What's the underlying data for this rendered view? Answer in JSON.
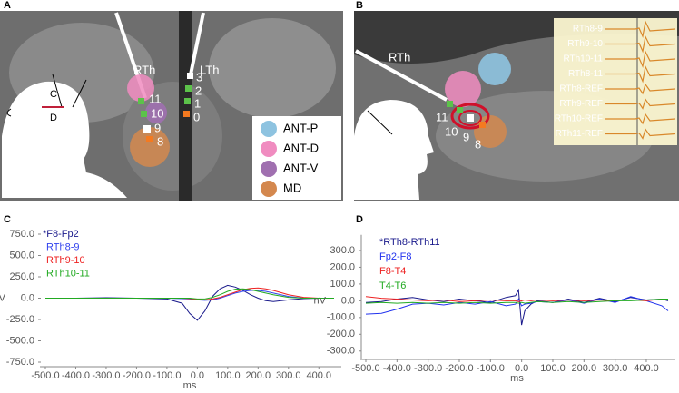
{
  "panels": {
    "A": {
      "label": "A",
      "leads": [
        "RTh",
        "LTh"
      ],
      "left_contacts": [
        "11",
        "10",
        "9",
        "8"
      ],
      "right_contacts": [
        "3",
        "2",
        "1",
        "0"
      ],
      "head_marks": [
        "C",
        "D"
      ],
      "legend": [
        "ANT-P",
        "ANT-D",
        "ANT-V",
        "MD"
      ]
    },
    "B": {
      "label": "B",
      "lead": "RTh",
      "contacts": [
        "11",
        "10",
        "9",
        "8"
      ],
      "traces": [
        "RTh8-9",
        "RTh9-10",
        "RTh10-11",
        "RTh8-11",
        "RTh8-REF",
        "RTh9-REF",
        "RTh10-REF",
        "RTh11-REF"
      ]
    }
  },
  "chart_data": [
    {
      "type": "line",
      "panel": "C",
      "x_label": "ms",
      "y_label": "nV",
      "x": [
        -500,
        -400,
        -300,
        -200,
        -100,
        -50,
        -25,
        0,
        25,
        50,
        75,
        100,
        125,
        150,
        175,
        200,
        225,
        250,
        300,
        350,
        400,
        450
      ],
      "series": [
        {
          "name": "*F8-Fp2",
          "color": "#1a1a8c",
          "values": [
            0,
            0,
            5,
            0,
            -10,
            -60,
            -180,
            -260,
            -150,
            20,
            110,
            150,
            130,
            90,
            40,
            0,
            -30,
            -40,
            -20,
            -5,
            0,
            0
          ]
        },
        {
          "name": "RTh8-9",
          "color": "#3344ee",
          "values": [
            0,
            0,
            0,
            0,
            0,
            -5,
            -10,
            -20,
            -25,
            -20,
            0,
            30,
            60,
            80,
            90,
            90,
            80,
            60,
            20,
            0,
            0,
            0
          ]
        },
        {
          "name": "RTh9-10",
          "color": "#ee2222",
          "values": [
            0,
            0,
            0,
            0,
            0,
            0,
            -5,
            -15,
            -20,
            -10,
            10,
            40,
            70,
            100,
            115,
            120,
            110,
            90,
            40,
            10,
            0,
            0
          ]
        },
        {
          "name": "RTh10-11",
          "color": "#22aa22",
          "values": [
            0,
            0,
            0,
            0,
            0,
            0,
            0,
            -10,
            -10,
            10,
            40,
            80,
            105,
            110,
            100,
            80,
            60,
            40,
            10,
            0,
            0,
            0
          ]
        }
      ],
      "xlim": [
        -500,
        450
      ],
      "ylim": [
        -750,
        750
      ],
      "xticks": [
        {
          "value": -500,
          "label": "-500.0"
        },
        {
          "value": -400,
          "label": "-400.0"
        },
        {
          "value": -300,
          "label": "-300.0"
        },
        {
          "value": -200,
          "label": "-200.0"
        },
        {
          "value": -100,
          "label": "-100.0"
        },
        {
          "value": 0,
          "label": "0.0"
        },
        {
          "value": 100,
          "label": "100.0"
        },
        {
          "value": 200,
          "label": "200.0"
        },
        {
          "value": 300,
          "label": "300.0"
        },
        {
          "value": 400,
          "label": "400.0"
        }
      ],
      "yticks": [
        {
          "value": 750,
          "label": "750.0"
        },
        {
          "value": 500,
          "label": "500.0"
        },
        {
          "value": 250,
          "label": "250.0"
        },
        {
          "value": 0,
          "label": "0.0"
        },
        {
          "value": -250,
          "label": "-250.0"
        },
        {
          "value": -500,
          "label": "-500.0"
        },
        {
          "value": -750,
          "label": "-750.0"
        }
      ]
    },
    {
      "type": "line",
      "panel": "D",
      "x_label": "ms",
      "y_label": "nV",
      "x": [
        -500,
        -450,
        -400,
        -350,
        -300,
        -250,
        -200,
        -150,
        -100,
        -50,
        -20,
        -10,
        0,
        10,
        30,
        50,
        100,
        150,
        200,
        250,
        300,
        350,
        400,
        450,
        470
      ],
      "series": [
        {
          "name": "*RTh8-RTh11",
          "color": "#1a1a8c",
          "values": [
            -10,
            -5,
            10,
            20,
            5,
            -5,
            10,
            0,
            -10,
            20,
            30,
            65,
            -145,
            -60,
            -20,
            0,
            -10,
            10,
            -10,
            15,
            -5,
            20,
            5,
            10,
            0
          ]
        },
        {
          "name": "Fp2-F8",
          "color": "#2233ee",
          "values": [
            -80,
            -75,
            -50,
            -20,
            -15,
            -25,
            -10,
            -20,
            -5,
            -30,
            -20,
            10,
            -30,
            -20,
            -15,
            -5,
            -10,
            5,
            -15,
            10,
            -10,
            25,
            0,
            -30,
            -60
          ]
        },
        {
          "name": "F8-T4",
          "color": "#ee2222",
          "values": [
            25,
            15,
            10,
            5,
            0,
            5,
            -5,
            0,
            5,
            0,
            0,
            -5,
            0,
            5,
            0,
            5,
            0,
            5,
            0,
            5,
            0,
            5,
            0,
            10,
            5
          ]
        },
        {
          "name": "T4-T6",
          "color": "#22aa22",
          "values": [
            -15,
            -10,
            -15,
            -10,
            -15,
            -10,
            -15,
            -10,
            -15,
            -10,
            -10,
            -15,
            -10,
            -15,
            -10,
            -5,
            -10,
            -5,
            -10,
            -5,
            0,
            0,
            5,
            10,
            10
          ]
        }
      ],
      "xlim": [
        -500,
        470
      ],
      "ylim": [
        -350,
        350
      ],
      "xticks": [
        {
          "value": -500,
          "label": "-500.0"
        },
        {
          "value": -400,
          "label": "-400.0"
        },
        {
          "value": -300,
          "label": "-300.0"
        },
        {
          "value": -200,
          "label": "-200.0"
        },
        {
          "value": -100,
          "label": "-100.0"
        },
        {
          "value": 0,
          "label": "0.0"
        },
        {
          "value": 100,
          "label": "100.0"
        },
        {
          "value": 200,
          "label": "200.0"
        },
        {
          "value": 300,
          "label": "300.0"
        },
        {
          "value": 400,
          "label": "400.0"
        }
      ],
      "yticks": [
        {
          "value": 300,
          "label": "300.0"
        },
        {
          "value": 200,
          "label": "200.0"
        },
        {
          "value": 100,
          "label": "100.0"
        },
        {
          "value": 0,
          "label": "0.0"
        },
        {
          "value": -100,
          "label": "-100.0"
        },
        {
          "value": -200,
          "label": "-200.0"
        },
        {
          "value": -300,
          "label": "-300.0"
        }
      ]
    }
  ]
}
